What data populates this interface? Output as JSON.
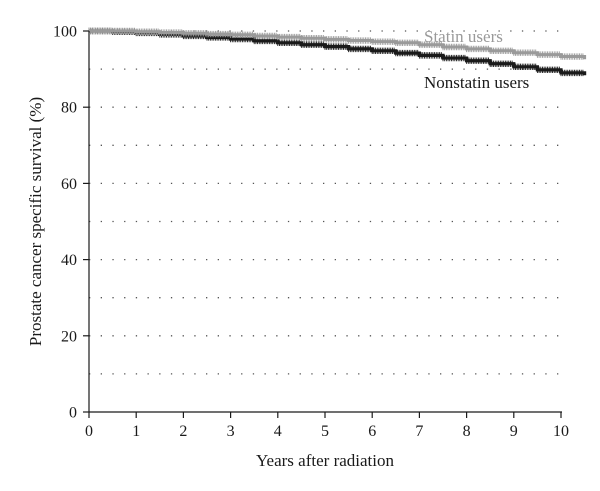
{
  "chart_data": {
    "type": "line",
    "title": "",
    "xlabel": "Years after radiation",
    "ylabel": "Prostate cancer specific survival (%)",
    "xlim": [
      0,
      10
    ],
    "ylim": [
      0,
      100
    ],
    "x_ticks": [
      "0",
      "1",
      "2",
      "3",
      "4",
      "5",
      "6",
      "7",
      "8",
      "9",
      "10"
    ],
    "y_ticks": [
      "0",
      "20",
      "40",
      "60",
      "80",
      "100"
    ],
    "grid": "horizontal dotted lines every 10",
    "legend": "inline labels near line ends",
    "colors": {
      "Statin users": "#9a9a9a",
      "Nonstatin users": "#1a1a1a"
    },
    "series": [
      {
        "name": "Statin users",
        "label": "Statin users",
        "x": [
          0,
          0.5,
          1,
          1.5,
          2,
          2.5,
          3,
          3.5,
          4,
          4.5,
          5,
          5.5,
          6,
          6.5,
          7,
          7.5,
          8,
          8.5,
          9,
          9.5,
          10,
          10.5
        ],
        "y": [
          100,
          100,
          99.8,
          99.6,
          99.4,
          99.2,
          99,
          98.7,
          98.4,
          98.1,
          97.8,
          97.5,
          97.2,
          96.9,
          96.4,
          95.8,
          95.3,
          94.8,
          94.3,
          93.8,
          93.3,
          92.6
        ]
      },
      {
        "name": "Nonstatin users",
        "label": "Nonstatin users",
        "x": [
          0,
          0.5,
          1,
          1.5,
          2,
          2.5,
          3,
          3.5,
          4,
          4.5,
          5,
          5.5,
          6,
          6.5,
          7,
          7.5,
          8,
          8.5,
          9,
          9.5,
          10,
          10.5
        ],
        "y": [
          100,
          99.8,
          99.5,
          99.1,
          98.7,
          98.3,
          97.9,
          97.4,
          96.9,
          96.4,
          95.9,
          95.3,
          94.8,
          94.2,
          93.6,
          92.9,
          92.2,
          91.4,
          90.6,
          89.8,
          89,
          88.4
        ]
      }
    ]
  }
}
